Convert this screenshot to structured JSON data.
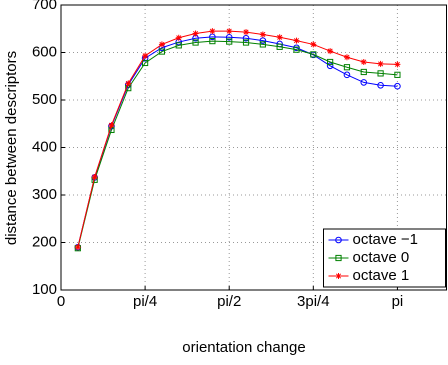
{
  "chart_data": {
    "type": "line",
    "xlabel": "orientation change",
    "ylabel": "distance between descriptors",
    "x": [
      0.1571,
      0.3142,
      0.4712,
      0.6283,
      0.7854,
      0.9425,
      1.0996,
      1.2566,
      1.4137,
      1.5708,
      1.7279,
      1.885,
      2.042,
      2.1991,
      2.3562,
      2.5133,
      2.6704,
      2.8274,
      2.9845,
      3.1416
    ],
    "series": [
      {
        "name": "octave −1",
        "color": "#0000ff",
        "marker": "circle",
        "values": [
          190,
          337,
          445,
          532,
          588,
          610,
          622,
          630,
          633,
          632,
          630,
          625,
          618,
          610,
          595,
          572,
          553,
          537,
          531,
          529
        ]
      },
      {
        "name": "octave 0",
        "color": "#008000",
        "marker": "square",
        "values": [
          188,
          332,
          437,
          525,
          578,
          602,
          615,
          621,
          624,
          623,
          621,
          617,
          612,
          606,
          596,
          580,
          569,
          559,
          556,
          553
        ]
      },
      {
        "name": "octave 1",
        "color": "#ff0000",
        "marker": "star",
        "values": [
          190,
          338,
          447,
          535,
          593,
          617,
          631,
          640,
          645,
          645,
          643,
          638,
          632,
          625,
          617,
          603,
          590,
          580,
          576,
          575
        ]
      }
    ],
    "xlim": [
      0,
      3.6
    ],
    "ylim": [
      100,
      700
    ],
    "xticks": [
      0,
      {
        "value": 0.7854,
        "label": "pi/4"
      },
      {
        "value": 1.5708,
        "label": "pi/2"
      },
      {
        "value": 2.3562,
        "label": "3pi/4"
      },
      {
        "value": 3.1416,
        "label": "pi"
      }
    ],
    "yticks": [
      100,
      200,
      300,
      400,
      500,
      600,
      700
    ],
    "grid": true,
    "legend": "lower right"
  }
}
